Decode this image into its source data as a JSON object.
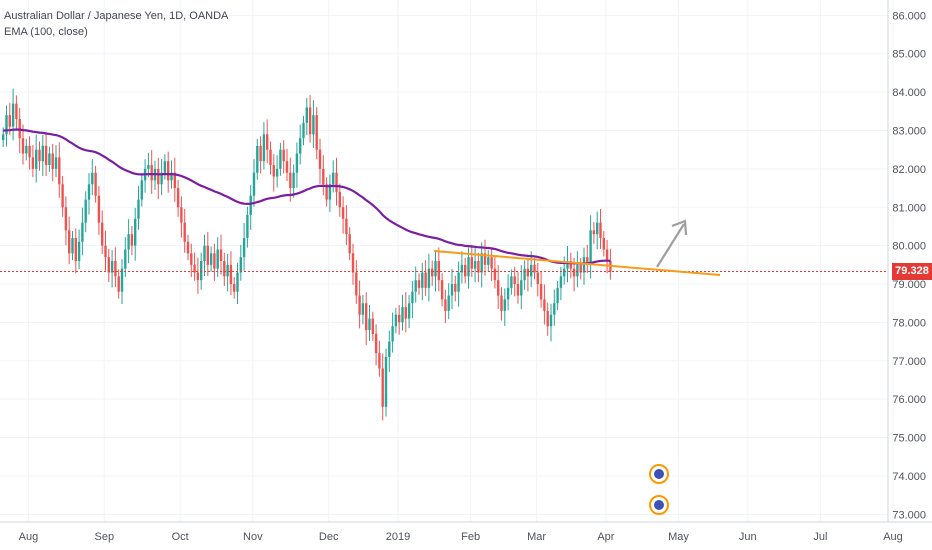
{
  "header": {
    "symbol_line": "Australian Dollar / Japanese Yen, 1D, OANDA",
    "indicator_line": "EMA (100, close)"
  },
  "colors": {
    "up": "#26a69a",
    "down": "#ef5350",
    "ema": "#7b1fa2",
    "trendline": "#f59d1b",
    "arrow": "#9e9e9e",
    "last_price_line": "#e53935",
    "grid": "#f0f3fa",
    "axis_text": "#50535e"
  },
  "last_price": {
    "label": "79.328",
    "value": 79.328
  },
  "chart_data": {
    "type": "candlestick",
    "y_axis": {
      "min": 72.8,
      "max": 86.4,
      "ticks": [
        "73.000",
        "74.000",
        "75.000",
        "76.000",
        "77.000",
        "78.000",
        "79.000",
        "80.000",
        "81.000",
        "82.000",
        "83.000",
        "84.000",
        "85.000",
        "86.000"
      ]
    },
    "x_axis": {
      "ticks": [
        "Aug",
        "Sep",
        "Oct",
        "Nov",
        "Dec",
        "2019",
        "Feb",
        "Mar",
        "Apr",
        "May",
        "Jun",
        "Jul",
        "Aug"
      ],
      "tick_index": [
        8,
        31,
        54,
        76,
        99,
        120,
        142,
        162,
        183,
        205,
        226,
        248,
        270
      ]
    },
    "candle_closes": [
      82.9,
      83.4,
      83.1,
      83.7,
      83.3,
      82.8,
      82.4,
      82.6,
      82.3,
      82.0,
      82.5,
      82.2,
      82.6,
      82.1,
      82.4,
      82.0,
      82.3,
      81.6,
      81.0,
      80.4,
      79.8,
      80.2,
      79.6,
      80.1,
      80.6,
      81.2,
      81.6,
      81.9,
      81.3,
      80.6,
      80.0,
      79.7,
      79.3,
      79.6,
      79.2,
      78.8,
      79.4,
      79.9,
      80.3,
      80.0,
      80.7,
      81.2,
      81.7,
      82.0,
      82.1,
      81.7,
      82.0,
      81.6,
      81.9,
      82.2,
      81.7,
      81.9,
      81.5,
      81.0,
      80.6,
      80.1,
      79.8,
      79.5,
      79.3,
      79.1,
      79.6,
      80.0,
      79.5,
      79.8,
      79.4,
      79.9,
      79.6,
      79.2,
      79.5,
      79.0,
      78.8,
      79.3,
      79.7,
      80.2,
      80.8,
      81.3,
      81.9,
      82.6,
      82.2,
      82.9,
      82.5,
      82.1,
      81.8,
      82.0,
      82.5,
      82.2,
      81.9,
      81.5,
      81.9,
      82.4,
      82.8,
      83.2,
      83.6,
      82.9,
      83.4,
      82.5,
      82.0,
      81.6,
      81.2,
      81.6,
      81.9,
      81.4,
      81.0,
      80.7,
      80.3,
      79.8,
      79.3,
      78.7,
      78.2,
      78.5,
      77.8,
      78.1,
      77.7,
      77.2,
      76.8,
      75.8,
      77.1,
      77.5,
      77.9,
      78.2,
      78.0,
      78.4,
      78.1,
      78.5,
      78.8,
      79.1,
      78.9,
      79.3,
      78.9,
      79.4,
      79.2,
      79.6,
      79.1,
      78.6,
      78.3,
      78.7,
      79.0,
      78.8,
      79.3,
      79.5,
      79.2,
      79.7,
      79.4,
      79.6,
      79.3,
      79.8,
      79.5,
      79.7,
      79.4,
      79.1,
      78.7,
      78.3,
      78.6,
      78.9,
      79.2,
      79.0,
      78.7,
      79.1,
      79.4,
      79.2,
      79.5,
      79.3,
      79.0,
      78.6,
      78.3,
      77.9,
      78.2,
      78.5,
      78.9,
      79.2,
      79.4,
      79.6,
      79.4,
      79.2,
      79.5,
      79.3,
      79.7,
      79.5,
      80.4,
      80.3,
      80.6,
      80.2,
      79.9,
      79.6,
      79.33
    ]
  }
}
